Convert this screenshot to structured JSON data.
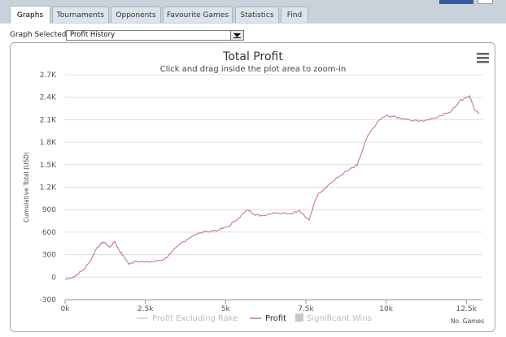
{
  "tabs": [
    {
      "label": "Graphs",
      "active": true
    },
    {
      "label": "Tournaments",
      "active": false
    },
    {
      "label": "Opponents",
      "active": false
    },
    {
      "label": "Favourite Games",
      "active": false
    },
    {
      "label": "Statistics",
      "active": false
    },
    {
      "label": "Find",
      "active": false
    }
  ],
  "graph_selector": {
    "label": "Graph Selected:",
    "value": "Profit History"
  },
  "icons": {
    "menu": "hamburger-menu-icon",
    "dropdown": "chevron-down-icon"
  },
  "colors": {
    "profit": "#c07070",
    "excluding_rake": "#cccccc",
    "significant_wins": "#c8c8c8",
    "tab_bar": "#c9d2da"
  },
  "chart_data": {
    "type": "line",
    "title": "Total Profit",
    "subtitle": "Click and drag inside the plot area to zoom-in",
    "xlabel": "No. Games",
    "ylabel": "Cumulative Total (USD)",
    "xlim": [
      0,
      13000
    ],
    "ylim": [
      -300,
      2700
    ],
    "x_ticks": [
      0,
      2500,
      5000,
      7500,
      10000,
      12500
    ],
    "x_tick_labels": [
      "0k",
      "2.5k",
      "5k",
      "7.5k",
      "10k",
      "12.5k"
    ],
    "y_ticks": [
      -300,
      0,
      300,
      600,
      900,
      1200,
      1500,
      1800,
      2100,
      2400,
      2700
    ],
    "y_tick_labels": [
      "-300",
      "0",
      "300",
      "600",
      "900",
      "1.2K",
      "1.5K",
      "1.8K",
      "2.1K",
      "2.4K",
      "2.7K"
    ],
    "grid": "horizontal",
    "legend_position": "bottom",
    "series": [
      {
        "name": "Profit Excluding Rake",
        "visible": false,
        "values": []
      },
      {
        "name": "Profit",
        "visible": true,
        "x": [
          0,
          300,
          600,
          800,
          1000,
          1200,
          1400,
          1550,
          1650,
          1800,
          2000,
          2200,
          2500,
          2800,
          3100,
          3300,
          3600,
          4000,
          4400,
          4800,
          5100,
          5400,
          5700,
          5900,
          6100,
          6500,
          7000,
          7300,
          7600,
          7800,
          7900,
          8200,
          8500,
          8800,
          9100,
          9400,
          9600,
          9800,
          10000,
          10200,
          10500,
          11000,
          11500,
          12000,
          12300,
          12450,
          12600,
          12750,
          12900
        ],
        "values": [
          -30,
          10,
          110,
          230,
          400,
          470,
          400,
          480,
          380,
          290,
          170,
          220,
          200,
          210,
          240,
          320,
          450,
          560,
          610,
          630,
          680,
          790,
          900,
          840,
          820,
          860,
          850,
          890,
          760,
          1030,
          1120,
          1230,
          1330,
          1420,
          1490,
          1860,
          1990,
          2100,
          2150,
          2140,
          2120,
          2080,
          2120,
          2200,
          2350,
          2390,
          2420,
          2240,
          2190
        ]
      },
      {
        "name": "Significant Wins",
        "visible": false,
        "values": []
      }
    ]
  }
}
